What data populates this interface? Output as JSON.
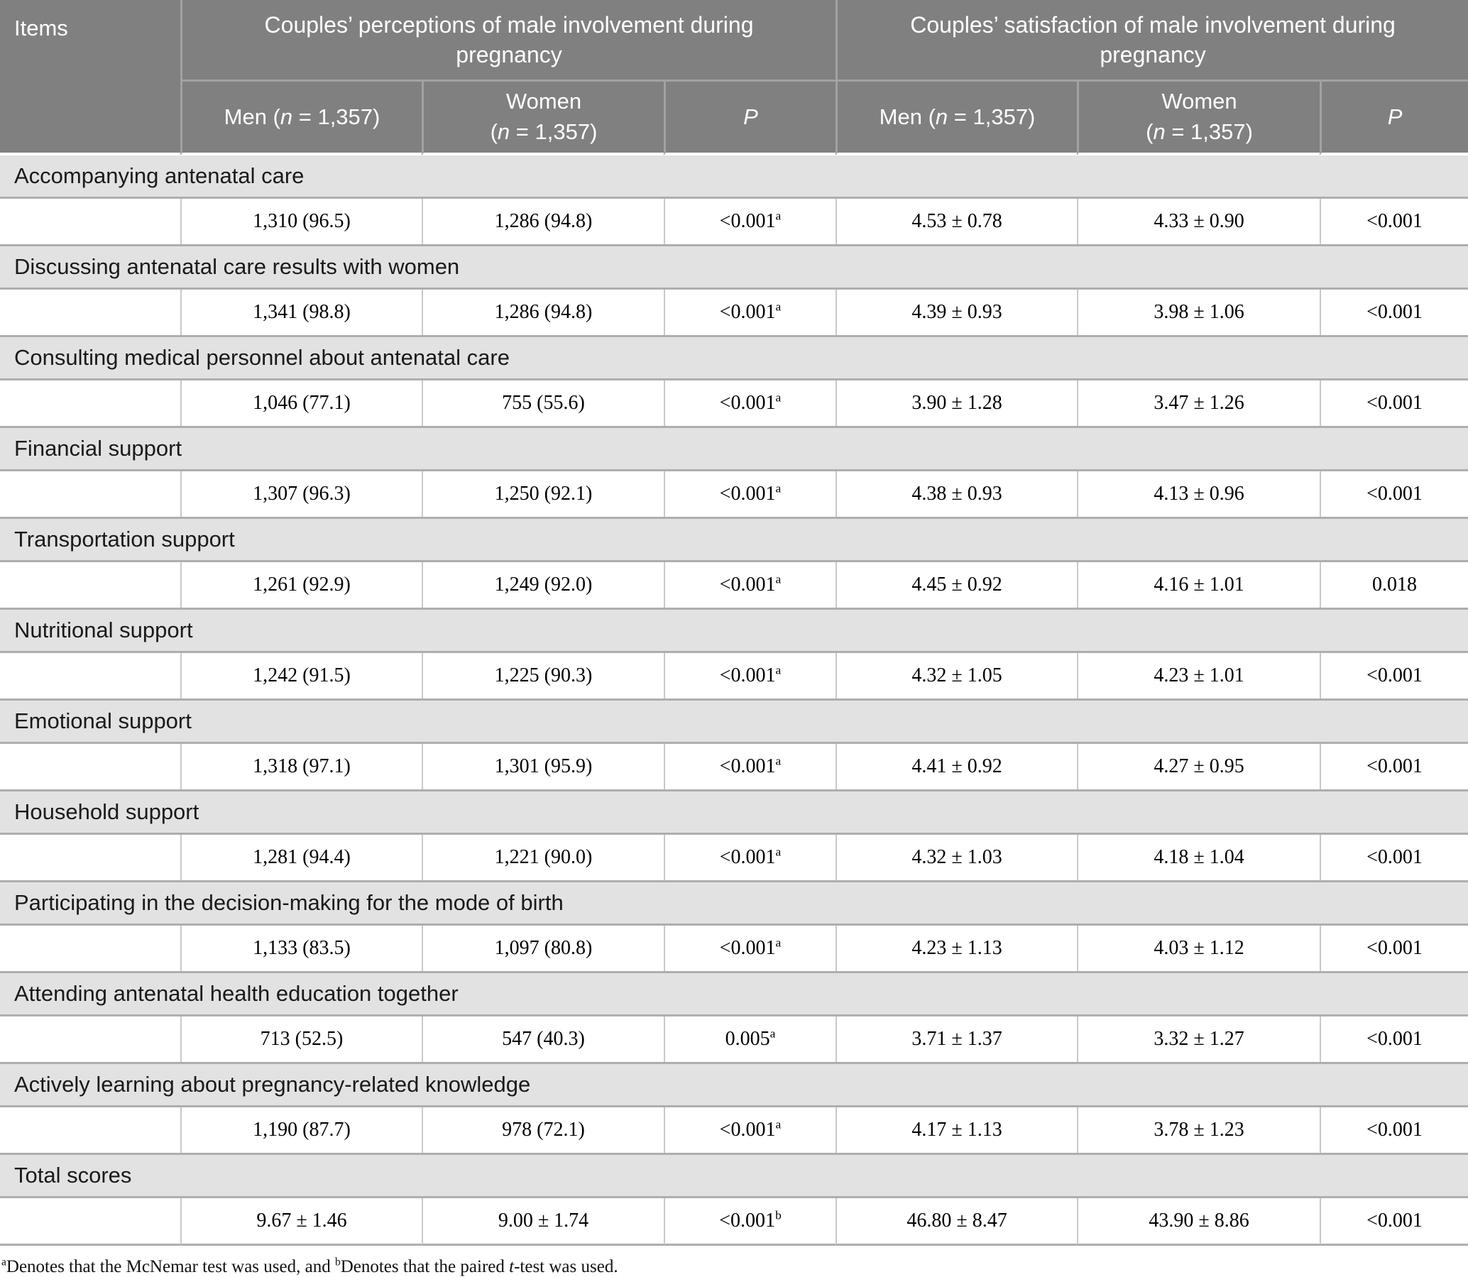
{
  "colors": {
    "header_bg": "#808080",
    "header_text": "#ffffff",
    "section_row_bg": "#e2e2e2",
    "data_row_bg": "#ffffff",
    "border_light": "#a2a2a2",
    "cell_divider": "#c9c9c9"
  },
  "table": {
    "items_header": "Items",
    "group_headers": [
      {
        "name": "perceptions",
        "segments": [
          {
            "t": "Couples’ perceptions of male involvement during"
          },
          {
            "br": true
          },
          {
            "t": "pregnancy"
          }
        ]
      },
      {
        "name": "satisfaction",
        "segments": [
          {
            "t": "Couples’ satisfaction of male involvement during"
          },
          {
            "br": true
          },
          {
            "t": "pregnancy"
          }
        ]
      }
    ],
    "sub_headers": [
      {
        "name": "men-perceptions",
        "segments": [
          {
            "t": "Men ("
          },
          {
            "t": "n",
            "i": true
          },
          {
            "t": " = 1,357)"
          }
        ]
      },
      {
        "name": "women-perceptions",
        "segments": [
          {
            "t": "Women"
          },
          {
            "br": true
          },
          {
            "t": "("
          },
          {
            "t": "n",
            "i": true
          },
          {
            "t": " = 1,357)"
          }
        ]
      },
      {
        "name": "p-perceptions",
        "segments": [
          {
            "t": "P",
            "i": true
          }
        ]
      },
      {
        "name": "men-satisfaction",
        "segments": [
          {
            "t": "Men ("
          },
          {
            "t": "n",
            "i": true
          },
          {
            "t": " = 1,357)"
          }
        ]
      },
      {
        "name": "women-satisfaction",
        "segments": [
          {
            "t": "Women"
          },
          {
            "br": true
          },
          {
            "t": "("
          },
          {
            "t": "n",
            "i": true
          },
          {
            "t": " = 1,357)"
          }
        ]
      },
      {
        "name": "p-satisfaction",
        "segments": [
          {
            "t": "P",
            "i": true
          }
        ]
      }
    ],
    "sections": [
      {
        "label": "Accompanying antenatal care",
        "cells": [
          {
            "t": "1,310 (96.5)"
          },
          {
            "t": "1,286 (94.8)"
          },
          {
            "t": "<0.001",
            "sup": "a"
          },
          {
            "t": "4.53 ± 0.78"
          },
          {
            "t": "4.33 ± 0.90"
          },
          {
            "t": "<0.001"
          }
        ]
      },
      {
        "label": "Discussing antenatal care results with women",
        "cells": [
          {
            "t": "1,341 (98.8)"
          },
          {
            "t": "1,286 (94.8)"
          },
          {
            "t": "<0.001",
            "sup": "a"
          },
          {
            "t": "4.39 ± 0.93"
          },
          {
            "t": "3.98 ± 1.06"
          },
          {
            "t": "<0.001"
          }
        ]
      },
      {
        "label": "Consulting medical personnel about antenatal care",
        "cells": [
          {
            "t": "1,046 (77.1)"
          },
          {
            "t": "755 (55.6)"
          },
          {
            "t": "<0.001",
            "sup": "a"
          },
          {
            "t": "3.90 ± 1.28"
          },
          {
            "t": "3.47 ± 1.26"
          },
          {
            "t": "<0.001"
          }
        ]
      },
      {
        "label": "Financial support",
        "cells": [
          {
            "t": "1,307 (96.3)"
          },
          {
            "t": "1,250 (92.1)"
          },
          {
            "t": "<0.001",
            "sup": "a"
          },
          {
            "t": "4.38 ± 0.93"
          },
          {
            "t": "4.13 ± 0.96"
          },
          {
            "t": "<0.001"
          }
        ]
      },
      {
        "label": "Transportation support",
        "cells": [
          {
            "t": "1,261 (92.9)"
          },
          {
            "t": "1,249 (92.0)"
          },
          {
            "t": "<0.001",
            "sup": "a"
          },
          {
            "t": "4.45 ± 0.92"
          },
          {
            "t": "4.16 ± 1.01"
          },
          {
            "t": "0.018"
          }
        ]
      },
      {
        "label": "Nutritional support",
        "cells": [
          {
            "t": "1,242 (91.5)"
          },
          {
            "t": "1,225 (90.3)"
          },
          {
            "t": "<0.001",
            "sup": "a"
          },
          {
            "t": "4.32 ± 1.05"
          },
          {
            "t": "4.23 ± 1.01"
          },
          {
            "t": "<0.001"
          }
        ]
      },
      {
        "label": "Emotional support",
        "cells": [
          {
            "t": "1,318 (97.1)"
          },
          {
            "t": "1,301 (95.9)"
          },
          {
            "t": "<0.001",
            "sup": "a"
          },
          {
            "t": "4.41 ± 0.92"
          },
          {
            "t": "4.27 ± 0.95"
          },
          {
            "t": "<0.001"
          }
        ]
      },
      {
        "label": "Household support",
        "cells": [
          {
            "t": "1,281 (94.4)"
          },
          {
            "t": "1,221 (90.0)"
          },
          {
            "t": "<0.001",
            "sup": "a"
          },
          {
            "t": "4.32 ± 1.03"
          },
          {
            "t": "4.18 ± 1.04"
          },
          {
            "t": "<0.001"
          }
        ]
      },
      {
        "label": "Participating in the decision-making for the mode of birth",
        "cells": [
          {
            "t": "1,133 (83.5)"
          },
          {
            "t": "1,097 (80.8)"
          },
          {
            "t": "<0.001",
            "sup": "a"
          },
          {
            "t": "4.23 ± 1.13"
          },
          {
            "t": "4.03 ± 1.12"
          },
          {
            "t": "<0.001"
          }
        ]
      },
      {
        "label": "Attending antenatal health education together",
        "cells": [
          {
            "t": "713 (52.5)"
          },
          {
            "t": "547 (40.3)"
          },
          {
            "t": "0.005",
            "sup": "a"
          },
          {
            "t": "3.71 ± 1.37"
          },
          {
            "t": "3.32 ± 1.27"
          },
          {
            "t": "<0.001"
          }
        ]
      },
      {
        "label": "Actively learning about pregnancy-related knowledge",
        "cells": [
          {
            "t": "1,190 (87.7)"
          },
          {
            "t": "978 (72.1)"
          },
          {
            "t": "<0.001",
            "sup": "a"
          },
          {
            "t": "4.17 ± 1.13"
          },
          {
            "t": "3.78 ± 1.23"
          },
          {
            "t": "<0.001"
          }
        ]
      },
      {
        "label": "Total scores",
        "cells": [
          {
            "t": "9.67 ± 1.46"
          },
          {
            "t": "9.00 ± 1.74"
          },
          {
            "t": "<0.001",
            "sup": "b"
          },
          {
            "t": "46.80 ± 8.47"
          },
          {
            "t": "43.90 ± 8.86"
          },
          {
            "t": "<0.001"
          }
        ]
      }
    ],
    "footnote_segments": [
      {
        "t": "a",
        "sup": true
      },
      {
        "t": "Denotes that the McNemar test was used, and "
      },
      {
        "t": "b",
        "sup": true
      },
      {
        "t": "Denotes that the paired "
      },
      {
        "t": "t",
        "i": true
      },
      {
        "t": "-test was used."
      }
    ]
  }
}
